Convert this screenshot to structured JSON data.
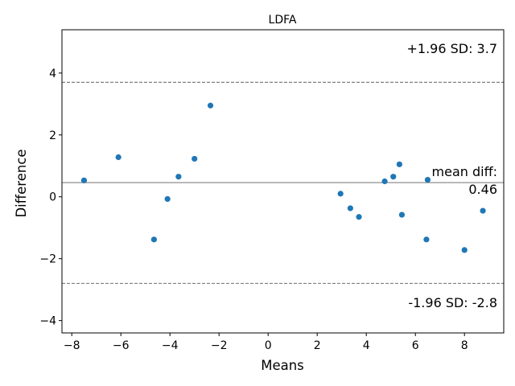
{
  "chart_data": {
    "type": "scatter",
    "title": "LDFA",
    "xlabel": "Means",
    "ylabel": "Difference",
    "xlim": [
      -8.4,
      9.6
    ],
    "ylim": [
      -4.4,
      5.4
    ],
    "xticks": [
      -8,
      -6,
      -4,
      -2,
      0,
      2,
      4,
      6,
      8
    ],
    "yticks": [
      -4,
      -2,
      0,
      2,
      4
    ],
    "grid": false,
    "point_color": "#1f77b4",
    "mean_line_color": "#808080",
    "limit_line_color": "#808080",
    "mean_diff": 0.46,
    "upper_loa": 3.7,
    "lower_loa": -2.8,
    "annotations": {
      "upper": "+1.96 SD: 3.7",
      "mean_line1": "mean diff:",
      "mean_line2": "0.46",
      "lower": "-1.96 SD: -2.8"
    },
    "points": [
      {
        "x": -7.5,
        "y": 0.53
      },
      {
        "x": -6.1,
        "y": 1.28
      },
      {
        "x": -4.65,
        "y": -1.38
      },
      {
        "x": -4.1,
        "y": -0.07
      },
      {
        "x": -3.65,
        "y": 0.65
      },
      {
        "x": -3.0,
        "y": 1.23
      },
      {
        "x": -2.35,
        "y": 2.95
      },
      {
        "x": 2.95,
        "y": 0.1
      },
      {
        "x": 3.35,
        "y": -0.37
      },
      {
        "x": 3.7,
        "y": -0.65
      },
      {
        "x": 4.75,
        "y": 0.5
      },
      {
        "x": 5.1,
        "y": 0.65
      },
      {
        "x": 5.35,
        "y": 1.05
      },
      {
        "x": 5.45,
        "y": -0.58
      },
      {
        "x": 6.45,
        "y": -1.38
      },
      {
        "x": 6.5,
        "y": 0.55
      },
      {
        "x": 8.0,
        "y": -1.72
      },
      {
        "x": 8.75,
        "y": -0.45
      }
    ]
  }
}
